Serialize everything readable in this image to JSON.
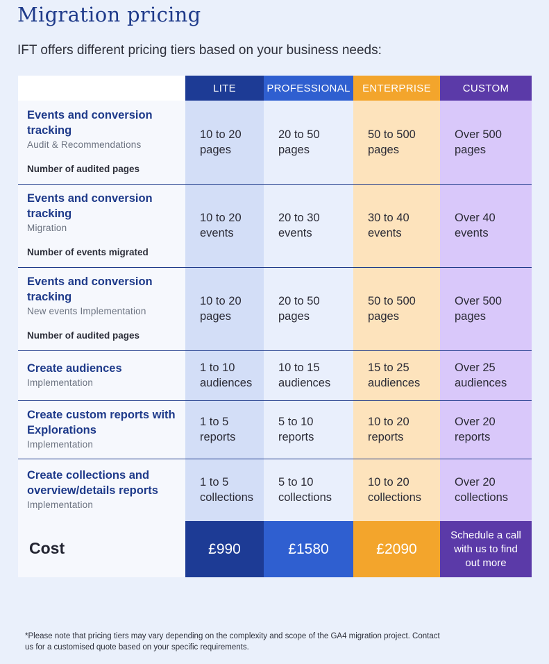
{
  "title": "Migration pricing",
  "subtitle": "IFT offers different pricing tiers based on your business needs:",
  "tiers": {
    "lite": "LITE",
    "professional": "PROFESSIONAL",
    "enterprise": "ENTERPRISE",
    "custom": "CUSTOM"
  },
  "rows": [
    {
      "title": "Events and conversion tracking",
      "subtitle": "Audit & Recommendations",
      "metric": "Number of audited pages",
      "lite": "10 to 20 pages",
      "professional": "20 to 50 pages",
      "enterprise": "50 to 500 pages",
      "custom": "Over 500 pages"
    },
    {
      "title": "Events and conversion tracking",
      "subtitle": "Migration",
      "metric": "Number of events migrated",
      "lite": "10 to 20 events",
      "professional": "20 to 30 events",
      "enterprise": "30 to 40 events",
      "custom": "Over 40 events"
    },
    {
      "title": "Events and conversion tracking",
      "subtitle": "New events Implementation",
      "metric": "Number of audited pages",
      "lite": "10 to 20 pages",
      "professional": "20 to 50 pages",
      "enterprise": "50 to 500 pages",
      "custom": "Over 500 pages"
    },
    {
      "title": "Create audiences",
      "subtitle": "Implementation",
      "lite": "1 to 10 audiences",
      "professional": "10 to 15 audiences",
      "enterprise": "15 to 25 audiences",
      "custom": "Over 25 audiences"
    },
    {
      "title": "Create custom reports with Explorations",
      "subtitle": "Implementation",
      "lite": "1 to 5 reports",
      "professional": "5 to 10 reports",
      "enterprise": "10 to 20 reports",
      "custom": "Over 20 reports"
    },
    {
      "title": "Create collections and overview/details reports",
      "subtitle": "Implementation",
      "lite": "1 to 5 collections",
      "professional": "5 to 10 collections",
      "enterprise": "10 to 20 collections",
      "custom": "Over 20 collections"
    }
  ],
  "cost": {
    "label": "Cost",
    "lite": "£990",
    "professional": "£1580",
    "enterprise": "£2090",
    "custom": "Schedule a call with us to find out more"
  },
  "footnote": "*Please note that pricing tiers may vary depending on the complexity and scope of the GA4 migration project. Contact us for a customised quote based on your specific requirements.",
  "colors": {
    "lite": "#1d3b95",
    "professional": "#2f5fd0",
    "enterprise": "#f3a52c",
    "custom": "#5b3aa8",
    "heading": "#1e3a8a"
  }
}
